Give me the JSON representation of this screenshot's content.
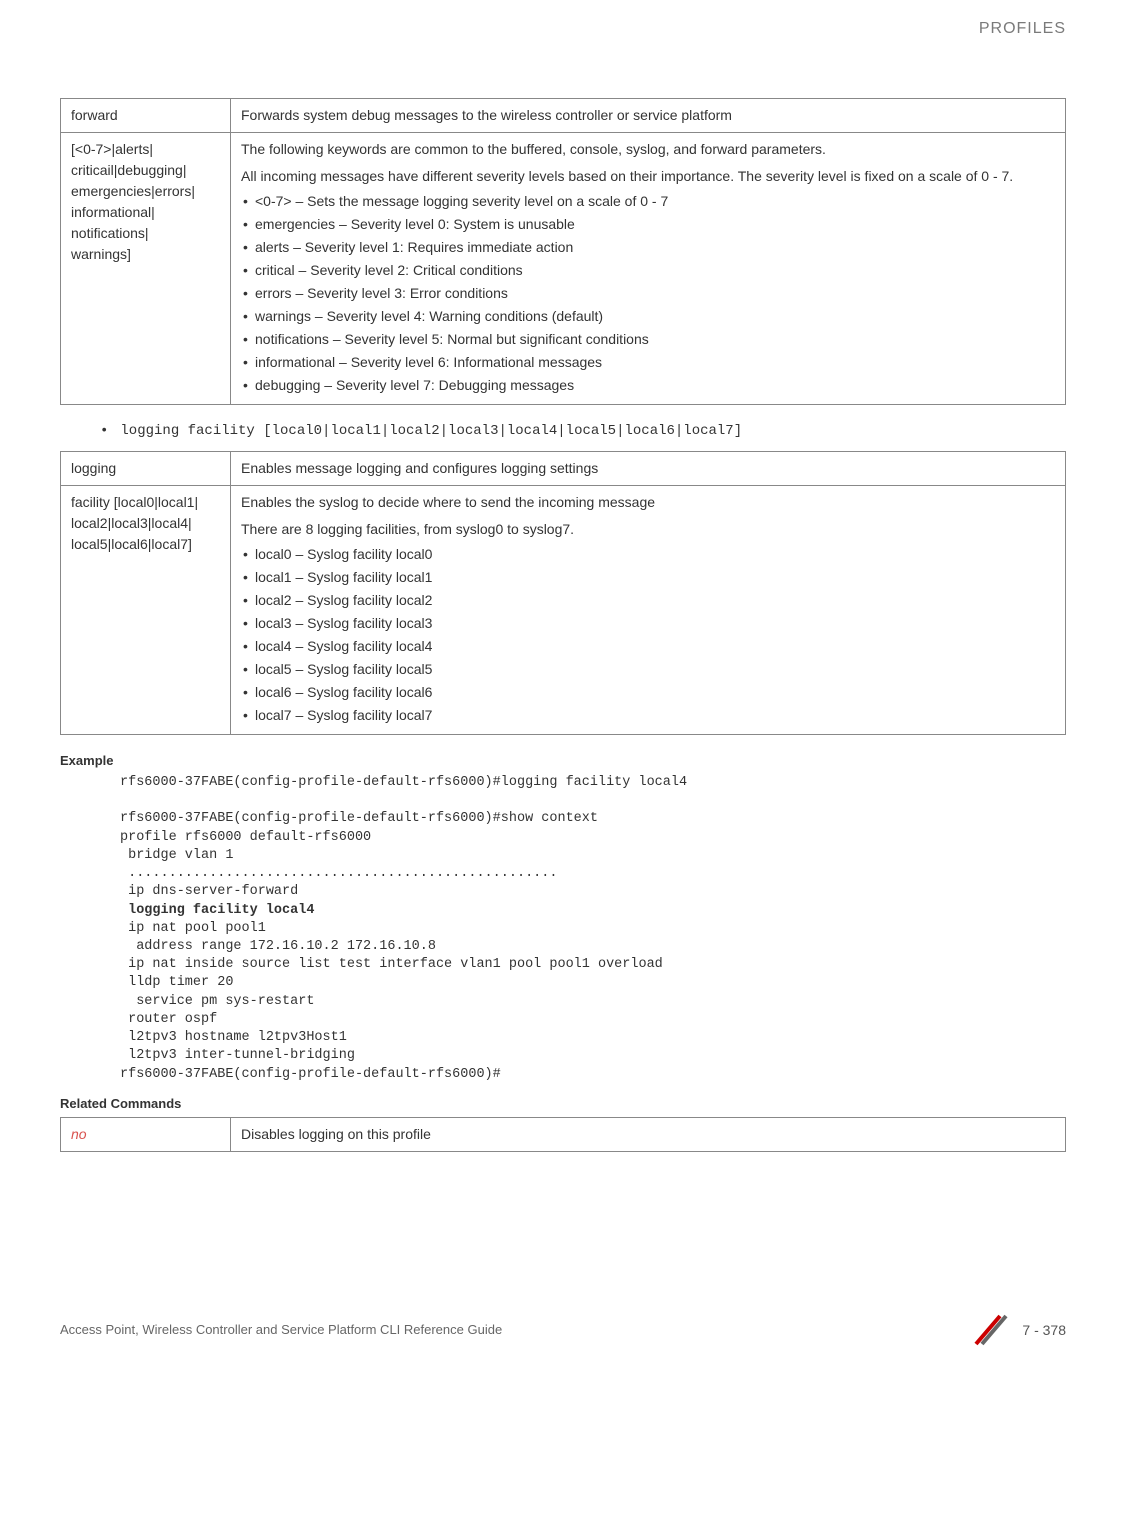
{
  "header": {
    "section_label": "PROFILES"
  },
  "table1": {
    "row1": {
      "param": "forward",
      "desc": "Forwards system debug messages to the wireless controller or service platform"
    },
    "row2": {
      "param": "[<0-7>|alerts|\ncriticail|debugging|\nemergencies|errors|\ninformational|\nnotifications|\nwarnings]",
      "desc_p1": "The following keywords are common to the buffered, console, syslog, and forward parameters.",
      "desc_p2": "All incoming messages have different severity levels based on their importance. The severity level is fixed on a scale of 0 - 7.",
      "bullets": [
        "<0-7> – Sets the message logging severity level on a scale of 0 - 7",
        "emergencies – Severity level 0: System is unusable",
        "alerts – Severity level 1: Requires immediate action",
        "critical – Severity level 2: Critical conditions",
        "errors – Severity level 3: Error conditions",
        "warnings – Severity level 4: Warning conditions (default)",
        "notifications – Severity level 5: Normal but significant conditions",
        "informational – Severity level 6: Informational messages",
        "debugging – Severity level 7: Debugging messages"
      ]
    }
  },
  "code_between": "logging facility [local0|local1|local2|local3|local4|local5|local6|local7]",
  "table2": {
    "row1": {
      "param": "logging",
      "desc": "Enables message logging and configures logging settings"
    },
    "row2": {
      "param": "facility [local0|local1|\nlocal2|local3|local4|\nlocal5|local6|local7]",
      "desc_p1": "Enables the syslog to decide where to send the incoming message",
      "desc_p2": "There are 8 logging facilities, from syslog0 to syslog7.",
      "bullets": [
        "local0 – Syslog facility local0",
        "local1 – Syslog facility local1",
        "local2 – Syslog facility local2",
        "local3 – Syslog facility local3",
        "local4 – Syslog facility local4",
        "local5 – Syslog facility local5",
        "local6 – Syslog facility local6",
        "local7 – Syslog facility local7"
      ]
    }
  },
  "headings": {
    "example": "Example",
    "related": "Related Commands"
  },
  "example_code": {
    "line1": "rfs6000-37FABE(config-profile-default-rfs6000)#logging facility local4",
    "block": "rfs6000-37FABE(config-profile-default-rfs6000)#show context\nprofile rfs6000 default-rfs6000\n bridge vlan 1\n .....................................................\n ip dns-server-forward\n ",
    "bold_line": "logging facility local4",
    "block2": "\n ip nat pool pool1\n  address range 172.16.10.2 172.16.10.8\n ip nat inside source list test interface vlan1 pool pool1 overload\n lldp timer 20\n  service pm sys-restart\n router ospf\n l2tpv3 hostname l2tpv3Host1\n l2tpv3 inter-tunnel-bridging\nrfs6000-37FABE(config-profile-default-rfs6000)#"
  },
  "table3": {
    "row1": {
      "param": "no",
      "desc": "Disables logging on this profile"
    }
  },
  "footer": {
    "left": "Access Point, Wireless Controller and Service Platform CLI Reference Guide",
    "page": "7 - 378"
  },
  "colors": {
    "header_text": "#7a7a7a",
    "body_text": "#333333",
    "border": "#888888",
    "no_link": "#d9534f",
    "footer_text": "#666666",
    "logo_red": "#cc0000"
  }
}
